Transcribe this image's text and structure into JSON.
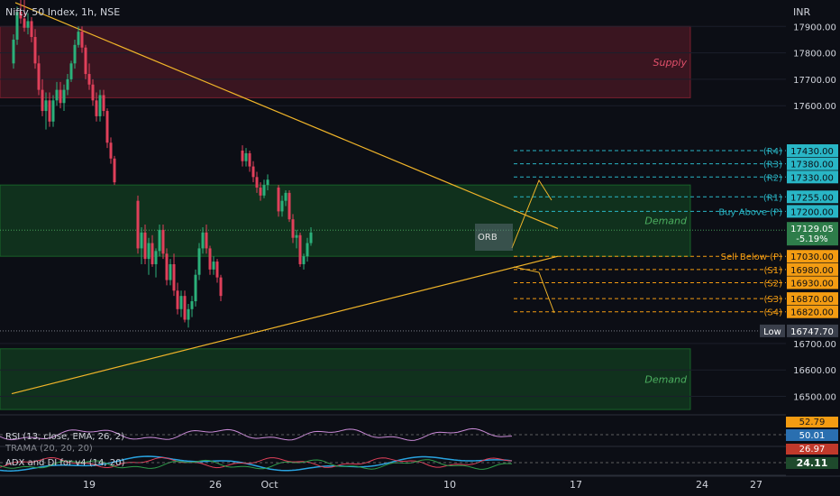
{
  "header": {
    "title": "Nifty 50 Index, 1h, NSE",
    "currency": "INR"
  },
  "chart_data": {
    "type": "candlestick",
    "symbol": "Nifty 50 Index",
    "interval": "1h",
    "exchange": "NSE",
    "currency": "INR",
    "ylim": [
      16430,
      18000
    ],
    "y_ticks": [
      17900,
      17800,
      17700,
      17600,
      16700,
      16600,
      16500
    ],
    "y_tick_labels": [
      "17900.00",
      "17800.00",
      "17700.00",
      "17600.00",
      "16700.00",
      "16600.00",
      "16500.00"
    ],
    "x_ticks": [
      {
        "label": "19",
        "x": 18.0
      },
      {
        "label": "26",
        "x": 25.0
      },
      {
        "label": "Oct",
        "x": 28.0
      },
      {
        "label": "10",
        "x": 38.0
      },
      {
        "label": "17",
        "x": 45.0
      },
      {
        "label": "24",
        "x": 52.0
      },
      {
        "label": "27",
        "x": 55.0
      }
    ],
    "zones": [
      {
        "name": "Supply",
        "low": 17630,
        "high": 17900,
        "color": "#b2283c"
      },
      {
        "name": "Demand",
        "low": 17030,
        "high": 17300,
        "color": "#1e8c32"
      },
      {
        "name": "Demand",
        "low": 16450,
        "high": 16680,
        "color": "#1e8c32"
      }
    ],
    "levels": [
      {
        "label": "(R4)",
        "value": 17430.0,
        "value_label": "17430.00",
        "color": "#29b6c6"
      },
      {
        "label": "(R3)",
        "value": 17380.0,
        "value_label": "17380.00",
        "color": "#29b6c6"
      },
      {
        "label": "(R2)",
        "value": 17330.0,
        "value_label": "17330.00",
        "color": "#29b6c6"
      },
      {
        "label": "(R1)",
        "value": 17255.0,
        "value_label": "17255.00",
        "color": "#29b6c6"
      },
      {
        "label": "Buy Above (P)",
        "value": 17200.0,
        "value_label": "17200.00",
        "color": "#29b6c6"
      },
      {
        "label": "Sell Below (P)",
        "value": 17030.0,
        "value_label": "17030.00",
        "color": "#f39c12"
      },
      {
        "label": "(S1)",
        "value": 16980.0,
        "value_label": "16980.00",
        "color": "#f39c12"
      },
      {
        "label": "(S2)",
        "value": 16930.0,
        "value_label": "16930.00",
        "color": "#f39c12"
      },
      {
        "label": "(S3)",
        "value": 16870.0,
        "value_label": "16870.00",
        "color": "#f39c12"
      },
      {
        "label": "(S4)",
        "value": 16820.0,
        "value_label": "16820.00",
        "color": "#f39c12"
      }
    ],
    "low_marker": {
      "label": "Low",
      "value": 16747.7,
      "value_label": "16747.70"
    },
    "last_price": {
      "value": 17129.05,
      "value_label": "17129.05",
      "change_label": "-5.19%"
    },
    "orb_label": "ORB",
    "trendlines": [
      {
        "x1": 14.2,
        "y1": 17990,
        "x2": 44.2,
        "y2": 17135,
        "color": "#f0b429"
      },
      {
        "x1": 14.0,
        "y1": 16510,
        "x2": 44.2,
        "y2": 17030,
        "color": "#f0b429"
      }
    ],
    "candles": [
      {
        "x": 14.1,
        "o": 17760,
        "h": 17870,
        "l": 17740,
        "c": 17850
      },
      {
        "x": 14.3,
        "o": 17850,
        "h": 17975,
        "l": 17830,
        "c": 17955
      },
      {
        "x": 14.5,
        "o": 17955,
        "h": 18000,
        "l": 17910,
        "c": 17930
      },
      {
        "x": 14.7,
        "o": 17930,
        "h": 18000,
        "l": 17880,
        "c": 17895
      },
      {
        "x": 14.9,
        "o": 17895,
        "h": 17950,
        "l": 17870,
        "c": 17920
      },
      {
        "x": 15.1,
        "o": 17920,
        "h": 17935,
        "l": 17840,
        "c": 17860
      },
      {
        "x": 15.3,
        "o": 17860,
        "h": 17890,
        "l": 17740,
        "c": 17760
      },
      {
        "x": 15.5,
        "o": 17760,
        "h": 17790,
        "l": 17640,
        "c": 17660
      },
      {
        "x": 15.7,
        "o": 17660,
        "h": 17700,
        "l": 17560,
        "c": 17580
      },
      {
        "x": 15.9,
        "o": 17580,
        "h": 17650,
        "l": 17510,
        "c": 17620
      },
      {
        "x": 16.1,
        "o": 17620,
        "h": 17650,
        "l": 17520,
        "c": 17540
      },
      {
        "x": 16.3,
        "o": 17540,
        "h": 17640,
        "l": 17520,
        "c": 17620
      },
      {
        "x": 16.5,
        "o": 17620,
        "h": 17690,
        "l": 17600,
        "c": 17660
      },
      {
        "x": 16.7,
        "o": 17660,
        "h": 17690,
        "l": 17590,
        "c": 17610
      },
      {
        "x": 16.9,
        "o": 17610,
        "h": 17680,
        "l": 17580,
        "c": 17660
      },
      {
        "x": 17.1,
        "o": 17660,
        "h": 17720,
        "l": 17640,
        "c": 17700
      },
      {
        "x": 17.3,
        "o": 17700,
        "h": 17770,
        "l": 17690,
        "c": 17760
      },
      {
        "x": 17.5,
        "o": 17760,
        "h": 17850,
        "l": 17740,
        "c": 17830
      },
      {
        "x": 17.7,
        "o": 17830,
        "h": 17900,
        "l": 17820,
        "c": 17880
      },
      {
        "x": 17.9,
        "o": 17880,
        "h": 17900,
        "l": 17800,
        "c": 17820
      },
      {
        "x": 18.1,
        "o": 17820,
        "h": 17830,
        "l": 17700,
        "c": 17720
      },
      {
        "x": 18.3,
        "o": 17720,
        "h": 17760,
        "l": 17660,
        "c": 17680
      },
      {
        "x": 18.5,
        "o": 17680,
        "h": 17700,
        "l": 17600,
        "c": 17620
      },
      {
        "x": 18.7,
        "o": 17620,
        "h": 17650,
        "l": 17540,
        "c": 17560
      },
      {
        "x": 18.9,
        "o": 17560,
        "h": 17660,
        "l": 17540,
        "c": 17640
      },
      {
        "x": 19.1,
        "o": 17640,
        "h": 17660,
        "l": 17560,
        "c": 17580
      },
      {
        "x": 19.3,
        "o": 17580,
        "h": 17590,
        "l": 17440,
        "c": 17460
      },
      {
        "x": 19.5,
        "o": 17460,
        "h": 17480,
        "l": 17380,
        "c": 17400
      },
      {
        "x": 19.7,
        "o": 17400,
        "h": 17410,
        "l": 17300,
        "c": 17310
      },
      {
        "x": 21.0,
        "o": 17240,
        "h": 17260,
        "l": 17040,
        "c": 17060
      },
      {
        "x": 21.2,
        "o": 17060,
        "h": 17140,
        "l": 17000,
        "c": 17120
      },
      {
        "x": 21.4,
        "o": 17120,
        "h": 17150,
        "l": 17000,
        "c": 17020
      },
      {
        "x": 21.6,
        "o": 17020,
        "h": 17100,
        "l": 16960,
        "c": 17080
      },
      {
        "x": 21.8,
        "o": 17080,
        "h": 17110,
        "l": 16990,
        "c": 17000
      },
      {
        "x": 22.0,
        "o": 17000,
        "h": 17060,
        "l": 16950,
        "c": 17050
      },
      {
        "x": 22.2,
        "o": 17050,
        "h": 17150,
        "l": 17030,
        "c": 17130
      },
      {
        "x": 22.4,
        "o": 17130,
        "h": 17150,
        "l": 17020,
        "c": 17040
      },
      {
        "x": 22.6,
        "o": 17040,
        "h": 17060,
        "l": 16920,
        "c": 16940
      },
      {
        "x": 22.8,
        "o": 16940,
        "h": 17020,
        "l": 16920,
        "c": 17000
      },
      {
        "x": 23.0,
        "o": 17000,
        "h": 17040,
        "l": 16880,
        "c": 16900
      },
      {
        "x": 23.2,
        "o": 16900,
        "h": 16930,
        "l": 16810,
        "c": 16830
      },
      {
        "x": 23.4,
        "o": 16830,
        "h": 16900,
        "l": 16800,
        "c": 16880
      },
      {
        "x": 23.6,
        "o": 16880,
        "h": 16900,
        "l": 16780,
        "c": 16790
      },
      {
        "x": 23.8,
        "o": 16790,
        "h": 16850,
        "l": 16760,
        "c": 16830
      },
      {
        "x": 24.0,
        "o": 16830,
        "h": 16880,
        "l": 16800,
        "c": 16860
      },
      {
        "x": 24.2,
        "o": 16860,
        "h": 16980,
        "l": 16840,
        "c": 16960
      },
      {
        "x": 24.4,
        "o": 16960,
        "h": 17080,
        "l": 16940,
        "c": 17060
      },
      {
        "x": 24.6,
        "o": 17060,
        "h": 17140,
        "l": 17040,
        "c": 17120
      },
      {
        "x": 24.8,
        "o": 17120,
        "h": 17150,
        "l": 17040,
        "c": 17060
      },
      {
        "x": 25.0,
        "o": 17060,
        "h": 17070,
        "l": 16960,
        "c": 16980
      },
      {
        "x": 25.2,
        "o": 16980,
        "h": 17030,
        "l": 16960,
        "c": 17010
      },
      {
        "x": 25.4,
        "o": 17010,
        "h": 17020,
        "l": 16930,
        "c": 16950
      },
      {
        "x": 25.6,
        "o": 16950,
        "h": 16960,
        "l": 16860,
        "c": 16880
      },
      {
        "x": 26.8,
        "o": 17430,
        "h": 17450,
        "l": 17370,
        "c": 17390
      },
      {
        "x": 27.0,
        "o": 17390,
        "h": 17440,
        "l": 17370,
        "c": 17420
      },
      {
        "x": 27.2,
        "o": 17420,
        "h": 17430,
        "l": 17350,
        "c": 17370
      },
      {
        "x": 27.4,
        "o": 17370,
        "h": 17390,
        "l": 17310,
        "c": 17330
      },
      {
        "x": 27.6,
        "o": 17330,
        "h": 17350,
        "l": 17270,
        "c": 17290
      },
      {
        "x": 27.8,
        "o": 17290,
        "h": 17310,
        "l": 17240,
        "c": 17260
      },
      {
        "x": 28.0,
        "o": 17260,
        "h": 17320,
        "l": 17250,
        "c": 17300
      },
      {
        "x": 28.2,
        "o": 17300,
        "h": 17340,
        "l": 17280,
        "c": 17320
      },
      {
        "x": 28.8,
        "o": 17290,
        "h": 17300,
        "l": 17180,
        "c": 17200
      },
      {
        "x": 29.0,
        "o": 17200,
        "h": 17260,
        "l": 17180,
        "c": 17240
      },
      {
        "x": 29.2,
        "o": 17240,
        "h": 17280,
        "l": 17220,
        "c": 17270
      },
      {
        "x": 29.4,
        "o": 17270,
        "h": 17280,
        "l": 17160,
        "c": 17170
      },
      {
        "x": 29.6,
        "o": 17170,
        "h": 17190,
        "l": 17080,
        "c": 17100
      },
      {
        "x": 29.8,
        "o": 17100,
        "h": 17130,
        "l": 17060,
        "c": 17110
      },
      {
        "x": 30.0,
        "o": 17110,
        "h": 17120,
        "l": 16990,
        "c": 17000
      },
      {
        "x": 30.2,
        "o": 17000,
        "h": 17040,
        "l": 16980,
        "c": 17030
      },
      {
        "x": 30.4,
        "o": 17030,
        "h": 17100,
        "l": 17010,
        "c": 17080
      },
      {
        "x": 30.6,
        "o": 17080,
        "h": 17140,
        "l": 17070,
        "c": 17120
      }
    ]
  },
  "indicators": {
    "rsi": {
      "label": "RSI (13, close, EMA, 26, 2)",
      "value_top": "52.79",
      "value": "50.01"
    },
    "trama": {
      "label": "TRAMA (20, 20, 20)",
      "value": "26.97"
    },
    "adx": {
      "label": "ADX and DI for v4 (14, 20)",
      "value": "24.11"
    }
  }
}
